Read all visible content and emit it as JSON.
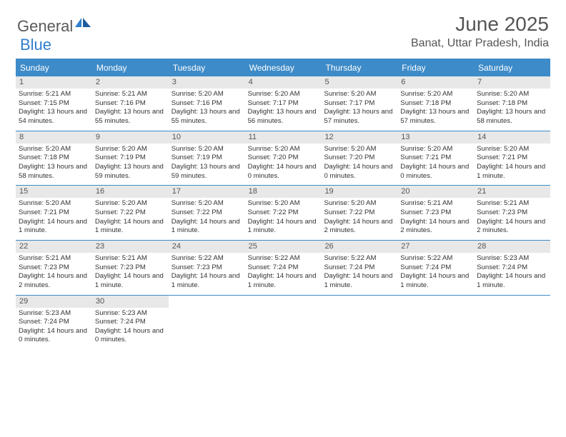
{
  "logo": {
    "part1": "General",
    "part2": "Blue"
  },
  "title": "June 2025",
  "location": "Banat, Uttar Pradesh, India",
  "colors": {
    "header_bg": "#3d8bc8",
    "daynum_bg": "#e8e8e8",
    "text": "#333333",
    "title_text": "#555555"
  },
  "day_headers": [
    "Sunday",
    "Monday",
    "Tuesday",
    "Wednesday",
    "Thursday",
    "Friday",
    "Saturday"
  ],
  "weeks": [
    [
      {
        "n": "1",
        "sr": "Sunrise: 5:21 AM",
        "ss": "Sunset: 7:15 PM",
        "dl": "Daylight: 13 hours and 54 minutes."
      },
      {
        "n": "2",
        "sr": "Sunrise: 5:21 AM",
        "ss": "Sunset: 7:16 PM",
        "dl": "Daylight: 13 hours and 55 minutes."
      },
      {
        "n": "3",
        "sr": "Sunrise: 5:20 AM",
        "ss": "Sunset: 7:16 PM",
        "dl": "Daylight: 13 hours and 55 minutes."
      },
      {
        "n": "4",
        "sr": "Sunrise: 5:20 AM",
        "ss": "Sunset: 7:17 PM",
        "dl": "Daylight: 13 hours and 56 minutes."
      },
      {
        "n": "5",
        "sr": "Sunrise: 5:20 AM",
        "ss": "Sunset: 7:17 PM",
        "dl": "Daylight: 13 hours and 57 minutes."
      },
      {
        "n": "6",
        "sr": "Sunrise: 5:20 AM",
        "ss": "Sunset: 7:18 PM",
        "dl": "Daylight: 13 hours and 57 minutes."
      },
      {
        "n": "7",
        "sr": "Sunrise: 5:20 AM",
        "ss": "Sunset: 7:18 PM",
        "dl": "Daylight: 13 hours and 58 minutes."
      }
    ],
    [
      {
        "n": "8",
        "sr": "Sunrise: 5:20 AM",
        "ss": "Sunset: 7:18 PM",
        "dl": "Daylight: 13 hours and 58 minutes."
      },
      {
        "n": "9",
        "sr": "Sunrise: 5:20 AM",
        "ss": "Sunset: 7:19 PM",
        "dl": "Daylight: 13 hours and 59 minutes."
      },
      {
        "n": "10",
        "sr": "Sunrise: 5:20 AM",
        "ss": "Sunset: 7:19 PM",
        "dl": "Daylight: 13 hours and 59 minutes."
      },
      {
        "n": "11",
        "sr": "Sunrise: 5:20 AM",
        "ss": "Sunset: 7:20 PM",
        "dl": "Daylight: 14 hours and 0 minutes."
      },
      {
        "n": "12",
        "sr": "Sunrise: 5:20 AM",
        "ss": "Sunset: 7:20 PM",
        "dl": "Daylight: 14 hours and 0 minutes."
      },
      {
        "n": "13",
        "sr": "Sunrise: 5:20 AM",
        "ss": "Sunset: 7:21 PM",
        "dl": "Daylight: 14 hours and 0 minutes."
      },
      {
        "n": "14",
        "sr": "Sunrise: 5:20 AM",
        "ss": "Sunset: 7:21 PM",
        "dl": "Daylight: 14 hours and 1 minute."
      }
    ],
    [
      {
        "n": "15",
        "sr": "Sunrise: 5:20 AM",
        "ss": "Sunset: 7:21 PM",
        "dl": "Daylight: 14 hours and 1 minute."
      },
      {
        "n": "16",
        "sr": "Sunrise: 5:20 AM",
        "ss": "Sunset: 7:22 PM",
        "dl": "Daylight: 14 hours and 1 minute."
      },
      {
        "n": "17",
        "sr": "Sunrise: 5:20 AM",
        "ss": "Sunset: 7:22 PM",
        "dl": "Daylight: 14 hours and 1 minute."
      },
      {
        "n": "18",
        "sr": "Sunrise: 5:20 AM",
        "ss": "Sunset: 7:22 PM",
        "dl": "Daylight: 14 hours and 1 minute."
      },
      {
        "n": "19",
        "sr": "Sunrise: 5:20 AM",
        "ss": "Sunset: 7:22 PM",
        "dl": "Daylight: 14 hours and 2 minutes."
      },
      {
        "n": "20",
        "sr": "Sunrise: 5:21 AM",
        "ss": "Sunset: 7:23 PM",
        "dl": "Daylight: 14 hours and 2 minutes."
      },
      {
        "n": "21",
        "sr": "Sunrise: 5:21 AM",
        "ss": "Sunset: 7:23 PM",
        "dl": "Daylight: 14 hours and 2 minutes."
      }
    ],
    [
      {
        "n": "22",
        "sr": "Sunrise: 5:21 AM",
        "ss": "Sunset: 7:23 PM",
        "dl": "Daylight: 14 hours and 2 minutes."
      },
      {
        "n": "23",
        "sr": "Sunrise: 5:21 AM",
        "ss": "Sunset: 7:23 PM",
        "dl": "Daylight: 14 hours and 1 minute."
      },
      {
        "n": "24",
        "sr": "Sunrise: 5:22 AM",
        "ss": "Sunset: 7:23 PM",
        "dl": "Daylight: 14 hours and 1 minute."
      },
      {
        "n": "25",
        "sr": "Sunrise: 5:22 AM",
        "ss": "Sunset: 7:24 PM",
        "dl": "Daylight: 14 hours and 1 minute."
      },
      {
        "n": "26",
        "sr": "Sunrise: 5:22 AM",
        "ss": "Sunset: 7:24 PM",
        "dl": "Daylight: 14 hours and 1 minute."
      },
      {
        "n": "27",
        "sr": "Sunrise: 5:22 AM",
        "ss": "Sunset: 7:24 PM",
        "dl": "Daylight: 14 hours and 1 minute."
      },
      {
        "n": "28",
        "sr": "Sunrise: 5:23 AM",
        "ss": "Sunset: 7:24 PM",
        "dl": "Daylight: 14 hours and 1 minute."
      }
    ],
    [
      {
        "n": "29",
        "sr": "Sunrise: 5:23 AM",
        "ss": "Sunset: 7:24 PM",
        "dl": "Daylight: 14 hours and 0 minutes."
      },
      {
        "n": "30",
        "sr": "Sunrise: 5:23 AM",
        "ss": "Sunset: 7:24 PM",
        "dl": "Daylight: 14 hours and 0 minutes."
      },
      {
        "empty": true
      },
      {
        "empty": true
      },
      {
        "empty": true
      },
      {
        "empty": true
      },
      {
        "empty": true
      }
    ]
  ]
}
